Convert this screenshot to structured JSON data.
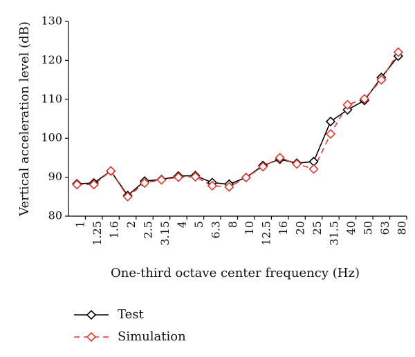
{
  "chart_data": {
    "type": "line",
    "title": "",
    "xlabel": "One-third octave center frequency (Hz)",
    "ylabel": "Vertical acceleration level (dB)",
    "ylim": [
      80,
      130
    ],
    "yticks": [
      80,
      90,
      100,
      110,
      120,
      130
    ],
    "grid": false,
    "legend_position": "bottom-left",
    "categories": [
      "1",
      "1.25",
      "1.6",
      "2",
      "2.5",
      "3.15",
      "4",
      "5",
      "6.3",
      "8",
      "10",
      "12.5",
      "16",
      "20",
      "25",
      "31.5",
      "40",
      "50",
      "63",
      "80"
    ],
    "series": [
      {
        "name": "Test",
        "color": "#000000",
        "marker": "diamond",
        "line": "solid",
        "values": [
          88.3,
          88.5,
          91.6,
          85.3,
          89.0,
          89.4,
          90.3,
          90.4,
          88.6,
          88.2,
          89.9,
          93.0,
          94.6,
          93.6,
          94.0,
          104.3,
          107.3,
          109.7,
          115.6,
          121.1
        ]
      },
      {
        "name": "Simulation",
        "color": "#e8352b",
        "marker": "diamond",
        "line": "dashed",
        "values": [
          88.1,
          88.1,
          91.6,
          85.0,
          88.5,
          89.3,
          90.0,
          90.1,
          87.8,
          87.5,
          89.9,
          92.7,
          95.0,
          93.4,
          92.1,
          101.1,
          108.6,
          110.1,
          115.0,
          122.1
        ]
      }
    ]
  }
}
